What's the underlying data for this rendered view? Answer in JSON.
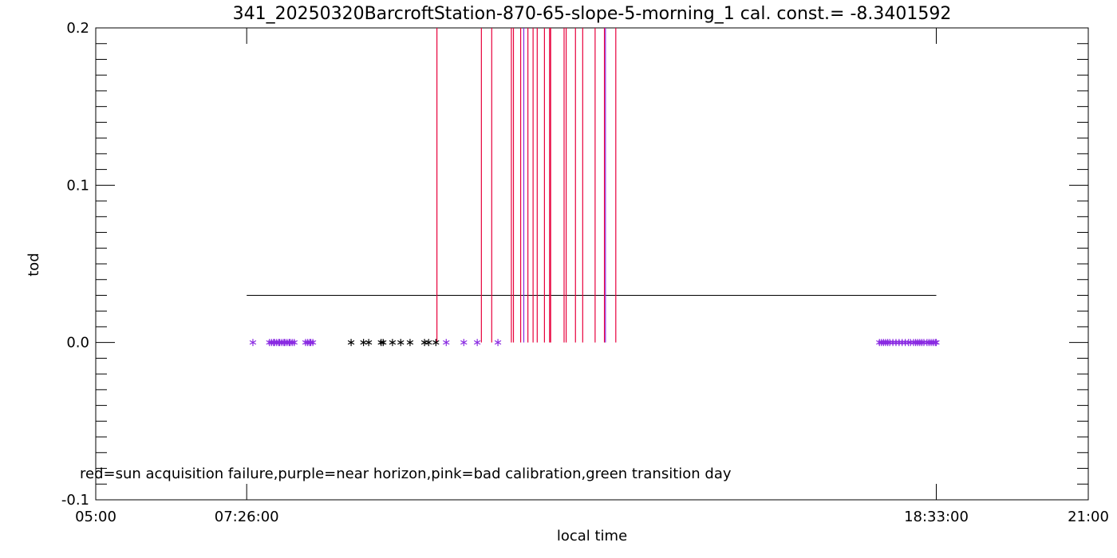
{
  "chart_data": {
    "type": "scatter",
    "title": "341_20250320BarcroftStation-870-65-slope-5-morning_1 cal. const.= -8.3401592",
    "xlabel": "local time",
    "ylabel": "tod",
    "xlim": [
      "05:00",
      "21:00"
    ],
    "ylim": [
      -0.1,
      0.2
    ],
    "x_ticks": [
      "05:00",
      "07:26:00",
      "18:33:00",
      "21:00"
    ],
    "y_ticks": [
      "-0.1",
      "0.0",
      "0.1",
      "0.2"
    ],
    "annotation": "red=sun acquisition failure,purple=near horizon,pink=bad calibration,green transition day",
    "colors": {
      "red": "#e8003c",
      "purple": "#8a2be2",
      "black": "#000000"
    },
    "reference_line": {
      "x_start": "07:26:00",
      "x_end": "18:33:00",
      "y": 0.03
    },
    "series": [
      {
        "color": "purple",
        "x": [
          "07:32",
          "07:48",
          "07:50",
          "07:52",
          "07:53",
          "07:55",
          "07:57",
          "07:58",
          "08:00",
          "08:02",
          "08:03",
          "08:05",
          "08:07",
          "08:08",
          "08:10",
          "08:12",
          "08:23",
          "08:25",
          "08:27",
          "08:28",
          "08:30",
          "10:39",
          "10:56",
          "11:09",
          "11:29",
          "17:38",
          "17:40",
          "17:42",
          "17:44",
          "17:46",
          "17:48",
          "17:51",
          "17:54",
          "17:57",
          "18:00",
          "18:03",
          "18:06",
          "18:08",
          "18:11",
          "18:13",
          "18:15",
          "18:17",
          "18:19",
          "18:21",
          "18:24",
          "18:26",
          "18:28",
          "18:30",
          "18:32",
          "18:33"
        ],
        "y": [
          0,
          0,
          0,
          0,
          0,
          0,
          0,
          0,
          0,
          0,
          0,
          0,
          0,
          0,
          0,
          0,
          0,
          0,
          0,
          0,
          0,
          0,
          0,
          0,
          0,
          0,
          0,
          0,
          0,
          0,
          0,
          0,
          0,
          0,
          0,
          0,
          0,
          0,
          0,
          0,
          0,
          0,
          0,
          0,
          0,
          0,
          0,
          0,
          0,
          0
        ]
      },
      {
        "color": "black",
        "x": [
          "09:07",
          "09:19",
          "09:24",
          "09:36",
          "09:38",
          "09:47",
          "09:55",
          "10:04",
          "10:18",
          "10:22",
          "10:29"
        ],
        "y": [
          0,
          0,
          0,
          0,
          0,
          0,
          0,
          0,
          0,
          0,
          0
        ]
      },
      {
        "color": "red",
        "type": "vertical-line",
        "x": [
          "10:30",
          "11:13",
          "11:23",
          "11:42",
          "11:44",
          "11:51",
          "11:58",
          "12:03",
          "12:07",
          "12:14",
          "12:19",
          "12:20",
          "12:33",
          "12:35",
          "12:44",
          "12:51",
          "13:03",
          "13:12",
          "13:23"
        ],
        "y_from": 0,
        "y_to": 0.2
      },
      {
        "color": "purple",
        "type": "vertical-line",
        "x": [
          "11:54",
          "13:13"
        ],
        "y_from": 0,
        "y_to": 0.2
      }
    ]
  }
}
